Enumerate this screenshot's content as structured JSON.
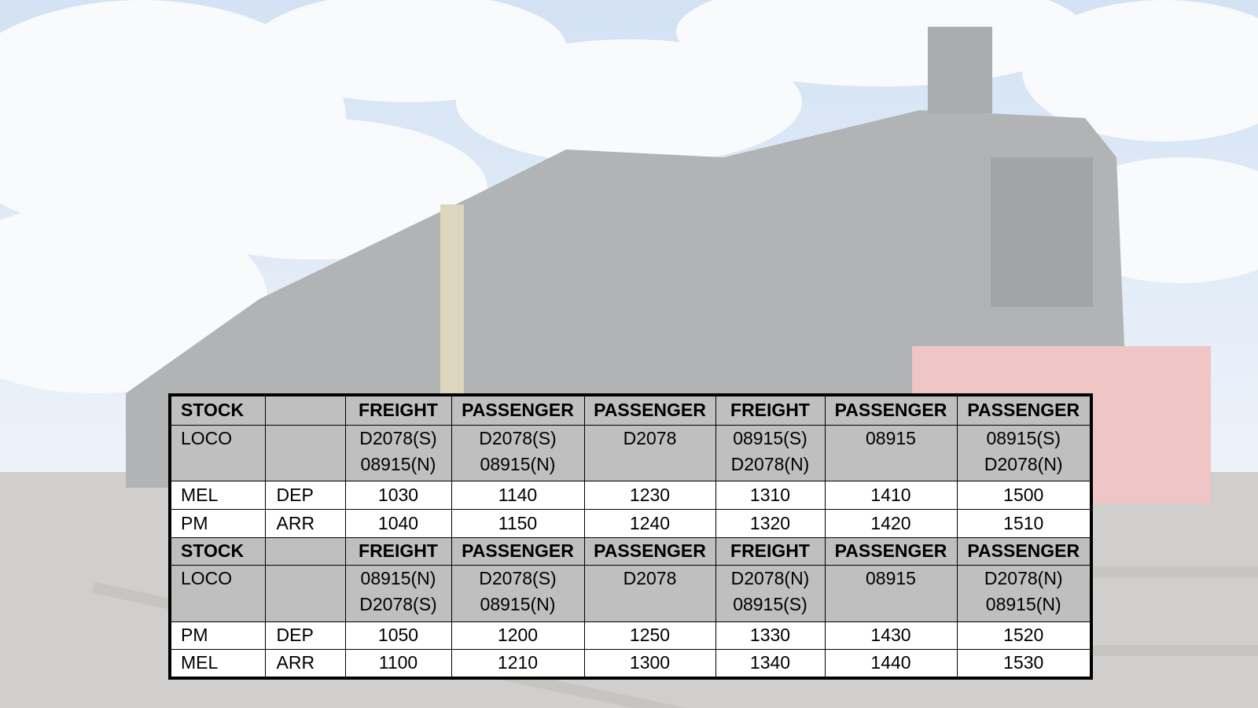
{
  "table": {
    "rows": [
      [
        "STOCK",
        null,
        "FREIGHT",
        "PASSENGER",
        "PASSENGER",
        "FREIGHT",
        "PASSENGER",
        "PASSENGER"
      ],
      [
        "LOCO",
        null,
        [
          "D2078(S)",
          "08915(N)"
        ],
        [
          "D2078(S)",
          "08915(N)"
        ],
        "D2078",
        [
          "08915(S)",
          "D2078(N)"
        ],
        "08915",
        [
          "08915(S)",
          "D2078(N)"
        ]
      ],
      [
        "MEL",
        "DEP",
        "1030",
        "1140",
        "1230",
        "1310",
        "1410",
        "1500"
      ],
      [
        "PM",
        "ARR",
        "1040",
        "1150",
        "1240",
        "1320",
        "1420",
        "1510"
      ],
      [
        "STOCK",
        null,
        "FREIGHT",
        "PASSENGER",
        "PASSENGER",
        "FREIGHT",
        "PASSENGER",
        "PASSENGER"
      ],
      [
        "LOCO",
        null,
        [
          "08915(N)",
          "D2078(S)"
        ],
        [
          "D2078(S)",
          "08915(N)"
        ],
        "D2078",
        [
          "D2078(N)",
          "08915(S)"
        ],
        "08915",
        [
          "D2078(N)",
          "08915(N)"
        ]
      ],
      [
        "PM",
        "DEP",
        "1050",
        "1200",
        "1250",
        "1330",
        "1430",
        "1520"
      ],
      [
        "MEL",
        "ARR",
        "1100",
        "1210",
        "1300",
        "1340",
        "1440",
        "1530"
      ]
    ]
  }
}
